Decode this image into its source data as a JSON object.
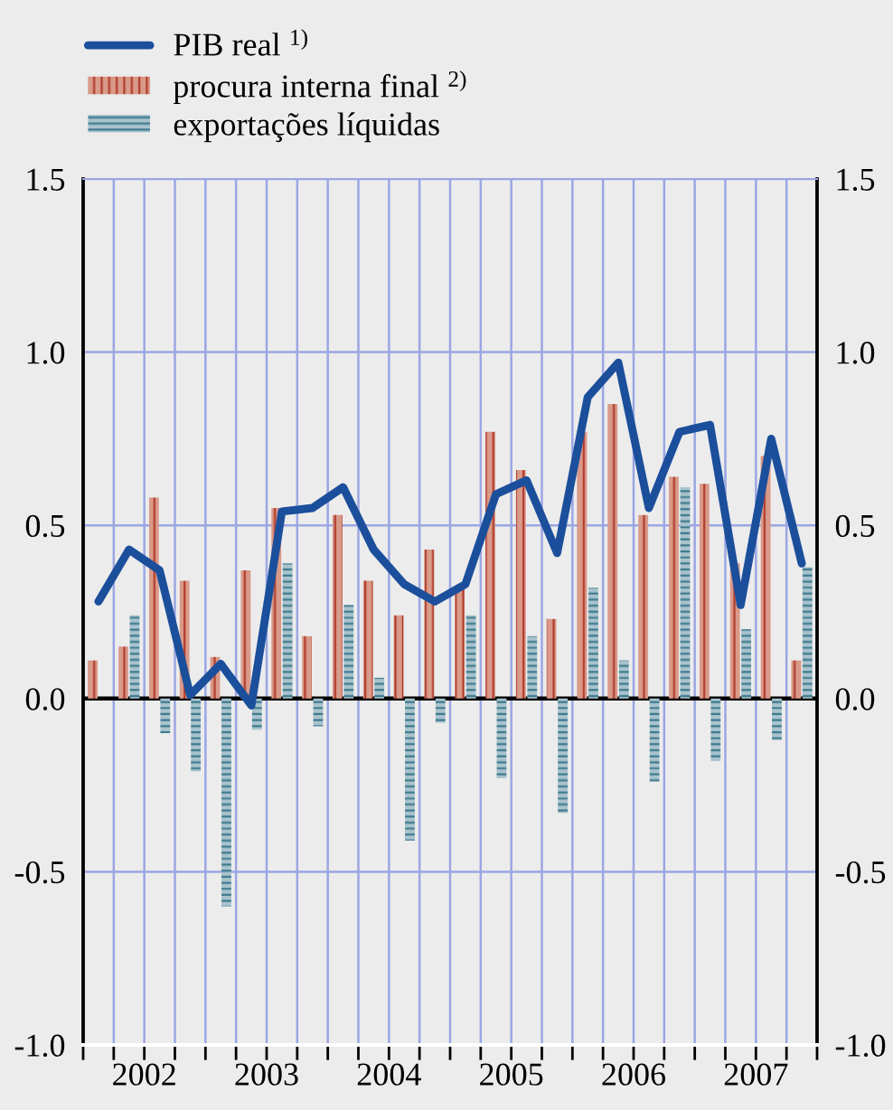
{
  "chart_data": {
    "type": "bar",
    "x": [
      2002.125,
      2002.375,
      2002.625,
      2002.875,
      2003.125,
      2003.375,
      2003.625,
      2003.875,
      2004.125,
      2004.375,
      2004.625,
      2004.875,
      2005.125,
      2005.375,
      2005.625,
      2005.875,
      2006.125,
      2006.375,
      2006.625,
      2006.875,
      2007.125,
      2007.375,
      2007.625,
      2007.875
    ],
    "series": [
      {
        "name": "PIB real $^{1)}$",
        "type": "line",
        "color": "#1b4f9c",
        "values": [
          0.28,
          0.43,
          0.37,
          0.01,
          0.1,
          -0.02,
          0.54,
          0.55,
          0.61,
          0.43,
          0.33,
          0.28,
          0.33,
          0.59,
          0.63,
          0.42,
          0.87,
          0.97,
          0.55,
          0.77,
          0.79,
          0.27,
          0.75,
          0.39
        ]
      },
      {
        "name": "procura interna final $^{2)}$",
        "color": "#d99a89",
        "values": [
          0.11,
          0.15,
          0.58,
          0.34,
          0.12,
          0.37,
          0.55,
          0.18,
          0.53,
          0.34,
          0.24,
          0.43,
          0.32,
          0.77,
          0.66,
          0.23,
          0.77,
          0.85,
          0.53,
          0.64,
          0.62,
          0.39,
          0.7,
          0.11
        ]
      },
      {
        "name": "exportações líquidas",
        "color": "#a9c3cd",
        "values": [
          null,
          0.24,
          -0.1,
          -0.21,
          -0.6,
          -0.09,
          0.39,
          -0.08,
          0.27,
          0.06,
          -0.41,
          -0.07,
          0.24,
          -0.23,
          0.18,
          -0.33,
          0.32,
          0.11,
          -0.24,
          0.61,
          -0.18,
          0.2,
          -0.12,
          0.38
        ]
      }
    ],
    "xlim": [
      2002,
      2008
    ],
    "xticks": [
      {
        "value": 2002,
        "label": null
      },
      {
        "value": 2002.25,
        "label": null
      },
      {
        "value": 2002.5,
        "label": "2002"
      },
      {
        "value": 2002.75,
        "label": null
      },
      {
        "value": 2003,
        "label": null
      },
      {
        "value": 2003.25,
        "label": null
      },
      {
        "value": 2003.5,
        "label": "2003"
      },
      {
        "value": 2003.75,
        "label": null
      },
      {
        "value": 2004,
        "label": null
      },
      {
        "value": 2004.25,
        "label": null
      },
      {
        "value": 2004.5,
        "label": "2004"
      },
      {
        "value": 2004.75,
        "label": null
      },
      {
        "value": 2005,
        "label": null
      },
      {
        "value": 2005.25,
        "label": null
      },
      {
        "value": 2005.5,
        "label": "2005"
      },
      {
        "value": 2005.75,
        "label": null
      },
      {
        "value": 2006,
        "label": null
      },
      {
        "value": 2006.25,
        "label": null
      },
      {
        "value": 2006.5,
        "label": "2006"
      },
      {
        "value": 2006.75,
        "label": null
      },
      {
        "value": 2007,
        "label": null
      },
      {
        "value": 2007.25,
        "label": null
      },
      {
        "value": 2007.5,
        "label": "2007"
      },
      {
        "value": 2007.75,
        "label": null
      },
      {
        "value": 2008,
        "label": null
      }
    ],
    "ylim": [
      -1.0,
      1.5
    ],
    "yticks": [
      {
        "value": -1.0,
        "label": "-1.0"
      },
      {
        "value": -0.5,
        "label": "-0.5"
      },
      {
        "value": 0.0,
        "label": "0.0"
      },
      {
        "value": 0.5,
        "label": "0.5"
      },
      {
        "value": 1.0,
        "label": "1.0"
      },
      {
        "value": 1.5,
        "label": "1.5"
      }
    ],
    "y2lim": [
      -1.0,
      1.5
    ],
    "y2ticks": [
      {
        "value": -1.0,
        "label": "-1.0"
      },
      {
        "value": -0.5,
        "label": "-0.5"
      },
      {
        "value": 0.0,
        "label": "0.0"
      },
      {
        "value": 0.5,
        "label": "0.5"
      },
      {
        "value": 1.0,
        "label": "1.0"
      },
      {
        "value": 1.5,
        "label": "1.5"
      }
    ],
    "ref_lines": [
      {
        "axis": "y",
        "value": 0,
        "color": "#000000"
      }
    ],
    "grid": true,
    "legend": "top left"
  }
}
